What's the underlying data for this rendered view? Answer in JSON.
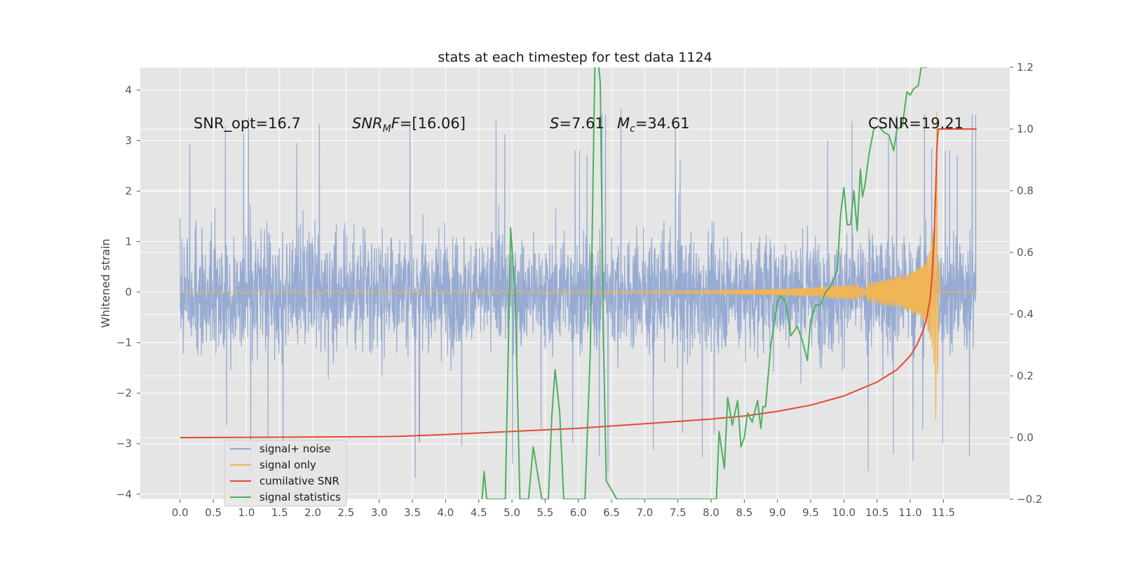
{
  "chart_data": {
    "type": "line",
    "title": "stats at each timestep for test data 1124",
    "ylabel": "Whitened strain",
    "xlabel": "",
    "xlim": [
      -0.6,
      12.5
    ],
    "ylim": [
      -4.1,
      4.45
    ],
    "ylim_right": [
      -0.2,
      1.2
    ],
    "grid": true,
    "legend_position": "lower-left",
    "x_ticks": [
      "0.0",
      "0.5",
      "1.0",
      "1.5",
      "2.0",
      "2.5",
      "3.0",
      "3.5",
      "4.0",
      "4.5",
      "5.0",
      "5.5",
      "6.0",
      "6.5",
      "7.0",
      "7.5",
      "8.0",
      "8.5",
      "9.0",
      "9.5",
      "10.0",
      "10.5",
      "11.0",
      "11.5"
    ],
    "y_ticks_left": [
      "4",
      "3",
      "2",
      "1",
      "0",
      "−1",
      "−2",
      "−3",
      "−4"
    ],
    "y_ticks_right": [
      "1.2",
      "1.0",
      "0.8",
      "0.6",
      "0.4",
      "0.2",
      "0.0",
      "−0.2"
    ],
    "annotations": {
      "snr_opt": "SNR_opt=16.7",
      "snr_mf_label": "SNR",
      "snr_mf_sub": "M",
      "snr_mf_f": "F",
      "snr_mf_val": "=[16.06]",
      "s_label": "S",
      "s_val": "=7.61",
      "mc_label": "M",
      "mc_sub": "c",
      "mc_val": "=34.61",
      "csnr": "CSNR=19.21"
    },
    "series": [
      {
        "name": "signal+ noise",
        "color": "#92a8d1",
        "axis": "left",
        "description": "whitened noise, amplitude about ±2 with peaks to ±3.5",
        "noise_envelope": {
          "typical": 1.8,
          "max_peak": 3.7,
          "x_start": 0.0,
          "x_end": 11.99
        }
      },
      {
        "name": "signal only",
        "color": "#f0b555",
        "axis": "left",
        "chirp": {
          "x": [
            0.0,
            8.0,
            9.0,
            9.5,
            10.0,
            10.5,
            11.0,
            11.2,
            11.3,
            11.35,
            11.38,
            11.4,
            11.42,
            11.45,
            12.0
          ],
          "amplitude": [
            0.02,
            0.03,
            0.06,
            0.09,
            0.14,
            0.22,
            0.38,
            0.55,
            0.85,
            1.3,
            2.2,
            3.6,
            1.2,
            0.0,
            0.0
          ]
        }
      },
      {
        "name": "cumilative SNR",
        "color": "#e24a33",
        "axis": "right",
        "x": [
          0.0,
          1.0,
          2.0,
          3.0,
          3.3,
          4.0,
          5.0,
          6.0,
          7.0,
          8.0,
          8.5,
          9.0,
          9.5,
          10.0,
          10.5,
          10.8,
          11.0,
          11.1,
          11.2,
          11.25,
          11.3,
          11.33,
          11.36,
          11.38,
          11.4,
          11.42,
          11.45,
          12.0
        ],
        "values": [
          0.0,
          0.001,
          0.002,
          0.003,
          0.004,
          0.01,
          0.02,
          0.03,
          0.045,
          0.06,
          0.07,
          0.085,
          0.105,
          0.135,
          0.18,
          0.22,
          0.265,
          0.3,
          0.35,
          0.39,
          0.45,
          0.53,
          0.65,
          0.78,
          0.93,
          1.0,
          1.0,
          1.0
        ]
      },
      {
        "name": "signal statistics",
        "color": "#4daf5e",
        "axis": "right",
        "x": [
          4.55,
          4.58,
          4.62,
          4.9,
          4.98,
          5.05,
          5.12,
          5.2,
          5.25,
          5.32,
          5.45,
          5.55,
          5.6,
          5.65,
          5.72,
          5.78,
          5.85,
          6.1,
          6.18,
          6.25,
          6.3,
          6.33,
          6.38,
          6.42,
          6.5,
          6.58,
          8.08,
          8.12,
          8.2,
          8.25,
          8.32,
          8.4,
          8.45,
          8.5,
          8.55,
          8.62,
          8.7,
          8.75,
          8.78,
          8.82,
          8.9,
          9.0,
          9.05,
          9.12,
          9.2,
          9.3,
          9.38,
          9.45,
          9.5,
          9.58,
          9.65,
          9.72,
          9.8,
          9.9,
          9.95,
          10.0,
          10.05,
          10.1,
          10.15,
          10.2,
          10.25,
          10.28,
          10.32,
          10.38,
          10.45,
          10.52,
          10.6,
          10.68,
          10.75,
          10.8,
          10.88,
          10.95,
          11.0,
          11.05,
          11.12,
          11.18,
          11.2,
          11.25
        ],
        "values": [
          -0.2,
          -0.11,
          -0.2,
          -0.2,
          0.68,
          0.45,
          -0.2,
          -0.2,
          -0.2,
          -0.03,
          -0.2,
          -0.2,
          0.07,
          0.22,
          0.08,
          -0.2,
          -0.2,
          -0.2,
          0.28,
          1.22,
          1.22,
          1.15,
          0.3,
          -0.14,
          -0.17,
          -0.2,
          -0.2,
          0.02,
          -0.1,
          0.13,
          0.04,
          0.12,
          -0.03,
          0.0,
          0.08,
          0.05,
          0.12,
          0.03,
          0.1,
          0.1,
          0.3,
          0.44,
          0.46,
          0.44,
          0.33,
          0.36,
          0.31,
          0.25,
          0.38,
          0.43,
          0.43,
          0.47,
          0.49,
          0.54,
          0.72,
          0.81,
          0.69,
          0.69,
          0.8,
          0.67,
          0.87,
          0.78,
          0.82,
          0.92,
          1.0,
          1.01,
          0.99,
          0.98,
          0.93,
          1.0,
          1.01,
          1.12,
          1.11,
          1.13,
          1.14,
          1.22,
          1.2,
          1.2
        ]
      }
    ]
  }
}
